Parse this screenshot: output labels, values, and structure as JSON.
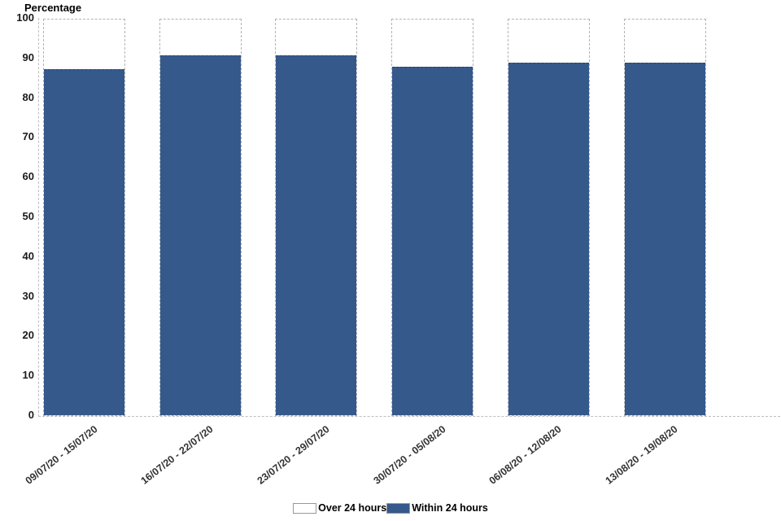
{
  "chart_data": {
    "type": "bar",
    "stacked": true,
    "title": "",
    "ylabel": "Percentage",
    "xlabel": "",
    "categories": [
      "09/07/20 - 15/07/20",
      "16/07/20 - 22/07/20",
      "23/07/20 - 29/07/20",
      "30/07/20 - 05/08/20",
      "06/08/20 - 12/08/20",
      "13/08/20 - 19/08/20"
    ],
    "series": [
      {
        "name": "Over 24 hours",
        "color": "#ffffff",
        "values": [
          12.5,
          9,
          9,
          12,
          11,
          11
        ]
      },
      {
        "name": "Within 24 hours",
        "color": "#36598C",
        "values": [
          87.5,
          91,
          91,
          88,
          89,
          89
        ]
      }
    ],
    "ylim": [
      0,
      100
    ],
    "ytick_step": 10,
    "yticks": [
      0,
      10,
      20,
      30,
      40,
      50,
      60,
      70,
      80,
      90,
      100
    ],
    "grid": false,
    "legend_position": "bottom",
    "axis_color": "#bdbdbd",
    "bar_border_color": "#b3b3b3",
    "text_color": "#1a1a1a"
  }
}
